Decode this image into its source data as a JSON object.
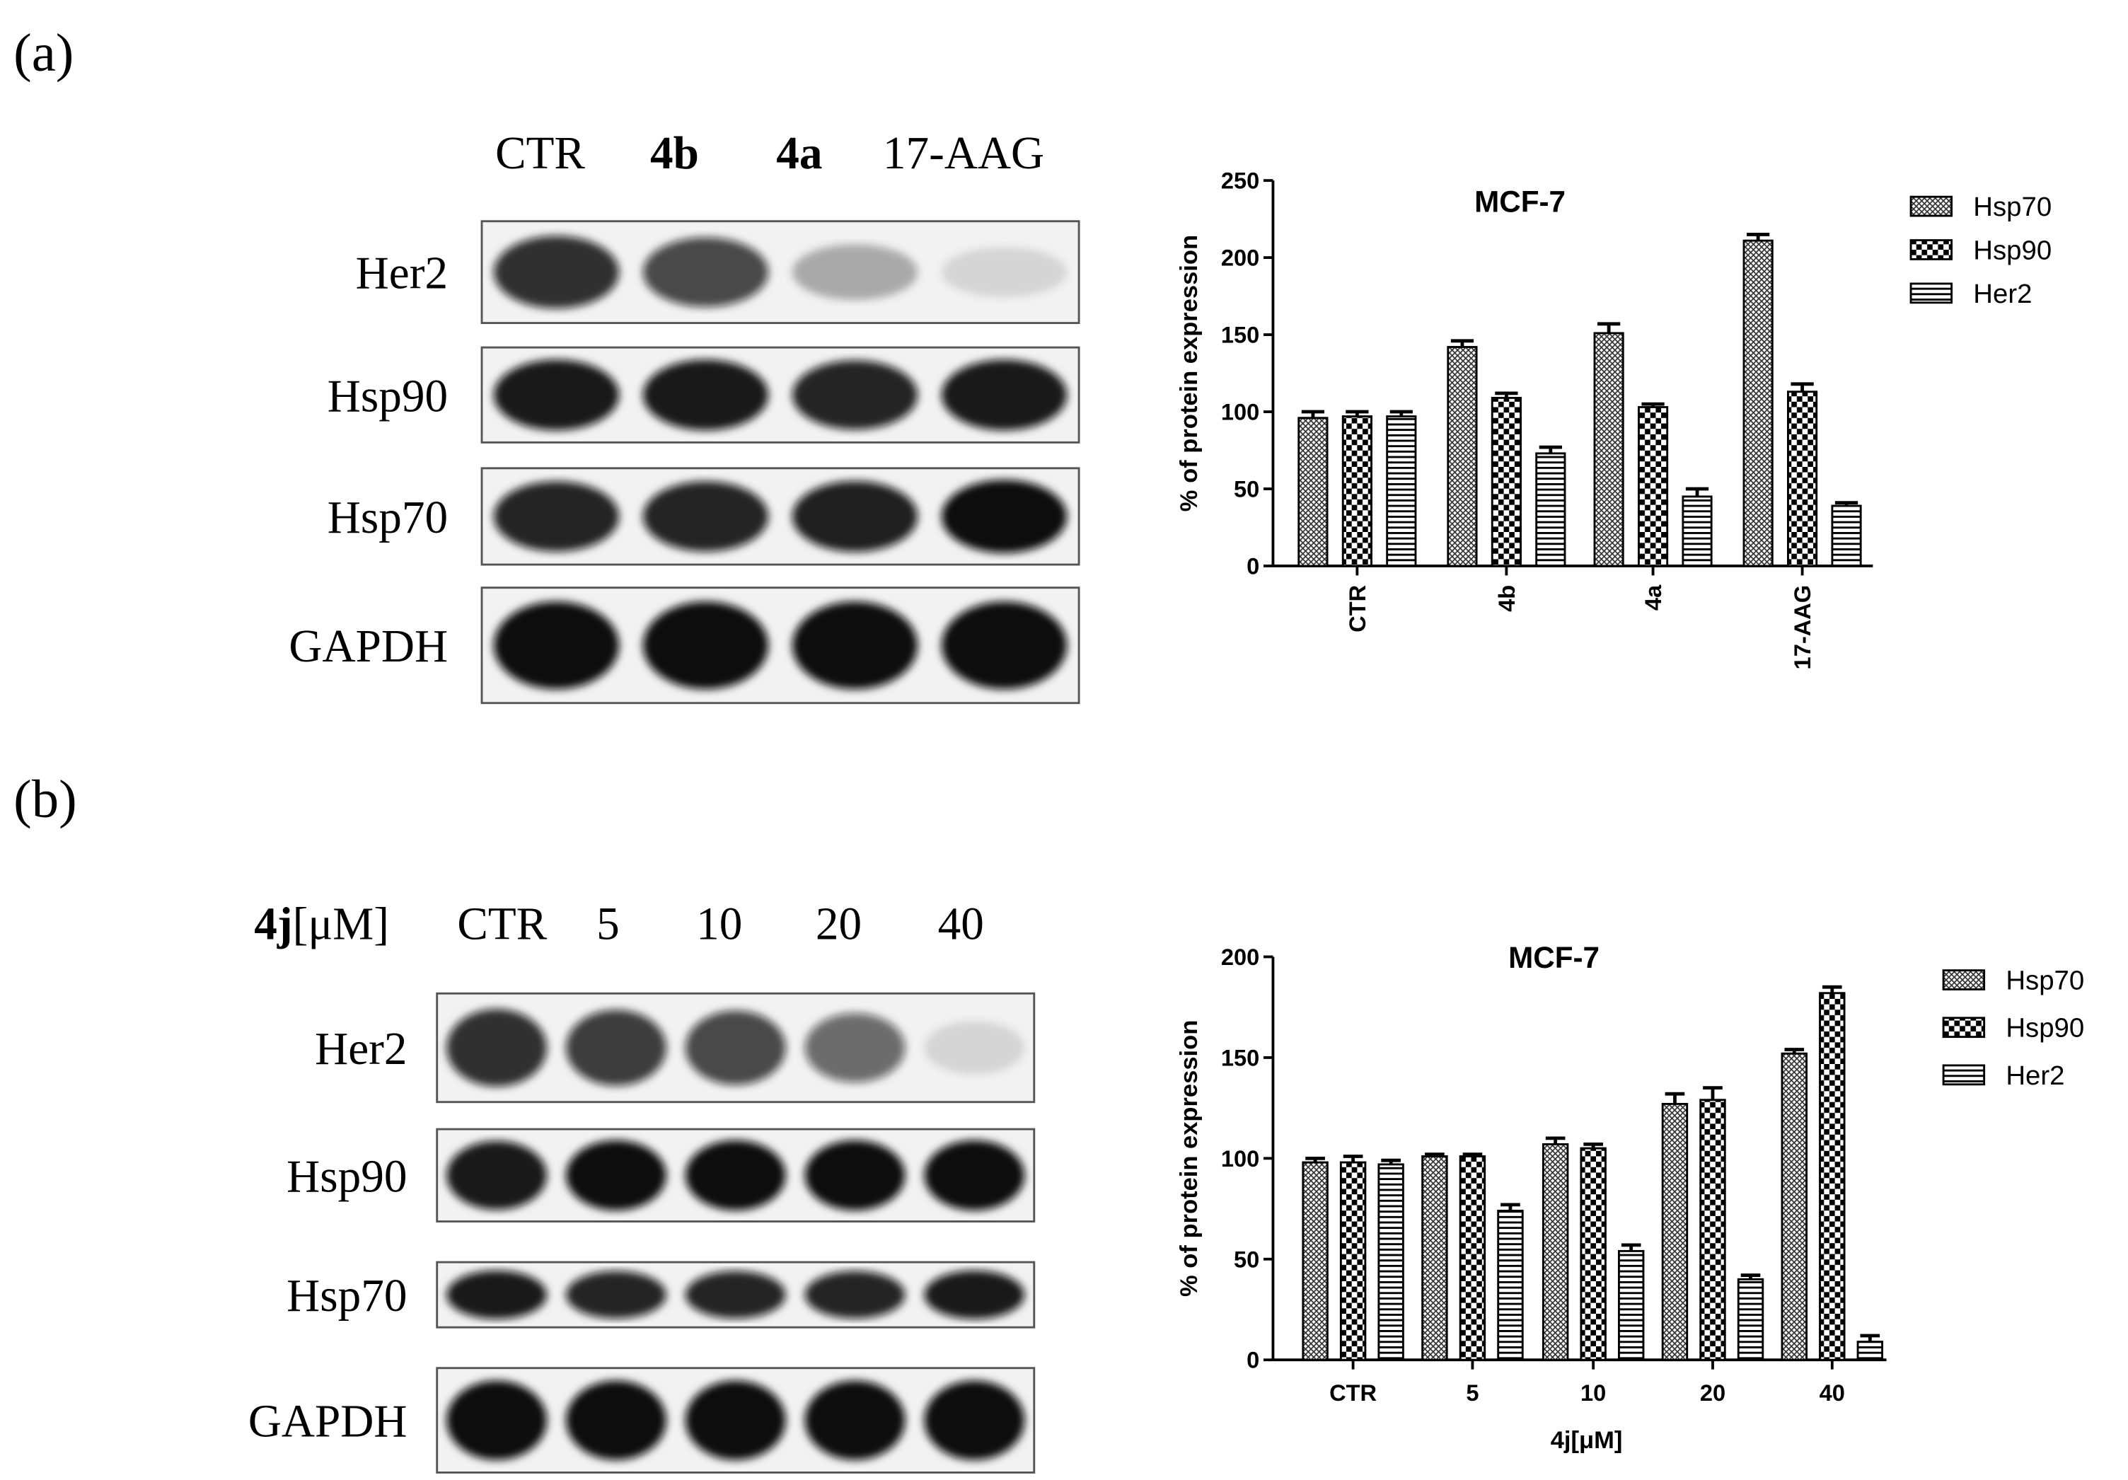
{
  "panels": [
    {
      "label": "(a)",
      "lanes": [
        "CTR",
        "4b",
        "4a",
        "17-AAG"
      ],
      "rows": [
        "Her2",
        "Hsp90",
        "Hsp70",
        "GAPDH"
      ]
    },
    {
      "label": "(b)",
      "dose_label": {
        "bold": "4j",
        "text": "[μM]"
      },
      "lanes": [
        "CTR",
        "5",
        "10",
        "20",
        "40"
      ],
      "rows": [
        "Her2",
        "Hsp90",
        "Hsp70",
        "GAPDH"
      ]
    }
  ],
  "chart_data": [
    {
      "type": "bar",
      "title": "MCF-7",
      "ylabel": "% of protein expression",
      "categories": [
        "CTR",
        "4b",
        "4a",
        "17-AAG"
      ],
      "rotate_xlabels": true,
      "series": [
        {
          "name": "Hsp70",
          "color": "#000000",
          "pattern": "crosshatch",
          "values": [
            96,
            142,
            151,
            211
          ],
          "errors": [
            4,
            4,
            6,
            4
          ]
        },
        {
          "name": "Hsp90",
          "color": "#000000",
          "pattern": "checker",
          "values": [
            97,
            109,
            103,
            113
          ],
          "errors": [
            3,
            3,
            2,
            5
          ]
        },
        {
          "name": "Her2",
          "color": "#000000",
          "pattern": "stripes",
          "values": [
            97,
            73,
            45,
            39
          ],
          "errors": [
            3,
            4,
            5,
            2
          ]
        }
      ],
      "ylim": [
        0,
        250
      ],
      "yticks": [
        0,
        50,
        100,
        150,
        200,
        250
      ],
      "legend": "right"
    },
    {
      "type": "bar",
      "title": "MCF-7",
      "ylabel": "% of protein expression",
      "xlabel": "4j[μM]",
      "categories": [
        "CTR",
        "5",
        "10",
        "20",
        "40"
      ],
      "rotate_xlabels": false,
      "series": [
        {
          "name": "Hsp70",
          "color": "#000000",
          "pattern": "crosshatch",
          "values": [
            98,
            101,
            107,
            127,
            152
          ],
          "errors": [
            2,
            1,
            3,
            5,
            2
          ]
        },
        {
          "name": "Hsp90",
          "color": "#000000",
          "pattern": "checker",
          "values": [
            98,
            101,
            105,
            129,
            182
          ],
          "errors": [
            3,
            1,
            2,
            6,
            3
          ]
        },
        {
          "name": "Her2",
          "color": "#000000",
          "pattern": "stripes",
          "values": [
            97,
            74,
            54,
            40,
            9
          ],
          "errors": [
            2,
            3,
            3,
            2,
            3
          ]
        }
      ],
      "ylim": [
        0,
        200
      ],
      "yticks": [
        0,
        50,
        100,
        150,
        200
      ],
      "legend": "right"
    }
  ]
}
